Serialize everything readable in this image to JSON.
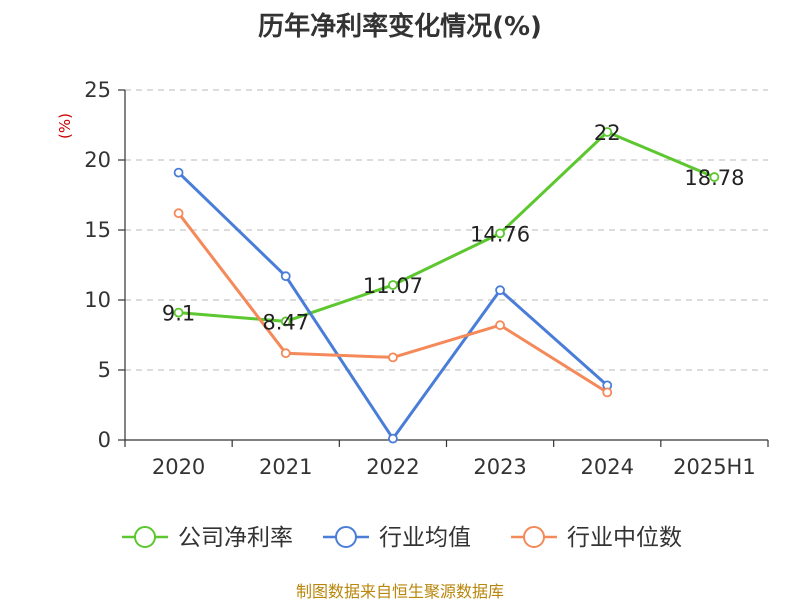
{
  "title": "历年净利率变化情况(%)",
  "source": "制图数据来自恒生聚源数据库",
  "chart_data": {
    "type": "line",
    "title": "历年净利率变化情况(%)",
    "ylabel": "(%)",
    "xlabel": "",
    "ylim": [
      0,
      25
    ],
    "yticks": [
      "0",
      "5",
      "10",
      "15",
      "20",
      "25"
    ],
    "categories": [
      "2020",
      "2021",
      "2022",
      "2023",
      "2024",
      "2025H1"
    ],
    "grid": true,
    "legend": "bottom",
    "series": [
      {
        "name": "公司净利率",
        "color": "#5cc72e",
        "values": [
          9.1,
          8.47,
          11.07,
          14.76,
          22,
          18.78
        ],
        "labels": [
          "9.1",
          "8.47",
          "11.07",
          "14.76",
          "22",
          "18.78"
        ]
      },
      {
        "name": "行业均值",
        "color": "#4a7dd8",
        "values": [
          19.1,
          11.7,
          0.1,
          10.7,
          3.9,
          null
        ]
      },
      {
        "name": "行业中位数",
        "color": "#f4895a",
        "values": [
          16.2,
          6.2,
          5.9,
          8.2,
          3.4,
          null
        ]
      }
    ]
  }
}
